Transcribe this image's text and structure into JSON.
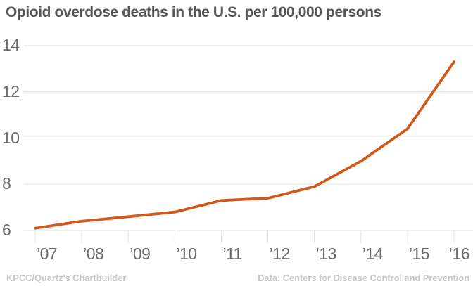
{
  "title": "Opioid overdose deaths in the U.S. per 100,000 persons",
  "footer": {
    "left": "KPCC/Quartz's Chartbuilder",
    "right": "Data: Centers for Disease Control and Prevention"
  },
  "colors": {
    "background": "#ffffff",
    "line": "#d2591b",
    "grid": "#e3e3e3",
    "tick": "#e3e3e3",
    "axis_text": "#6a6a6a",
    "title_text": "#565656",
    "footer_text": "#c8c8c8"
  },
  "chart_data": {
    "type": "line",
    "title": "Opioid overdose deaths in the U.S. per 100,000 persons",
    "categories": [
      "’07",
      "’08",
      "’09",
      "’10",
      "’11",
      "’12",
      "’13",
      "’14",
      "’15",
      "’16"
    ],
    "series": [
      {
        "name": "Opioid overdose deaths per 100,000 persons",
        "values": [
          6.1,
          6.4,
          6.6,
          6.8,
          7.3,
          7.4,
          7.9,
          9.0,
          10.4,
          13.3
        ]
      }
    ],
    "xlabel": "",
    "ylabel": "",
    "ylim": [
      6,
      14
    ],
    "yticks": [
      6,
      8,
      10,
      12,
      14
    ],
    "grid": true,
    "legend": "none"
  }
}
